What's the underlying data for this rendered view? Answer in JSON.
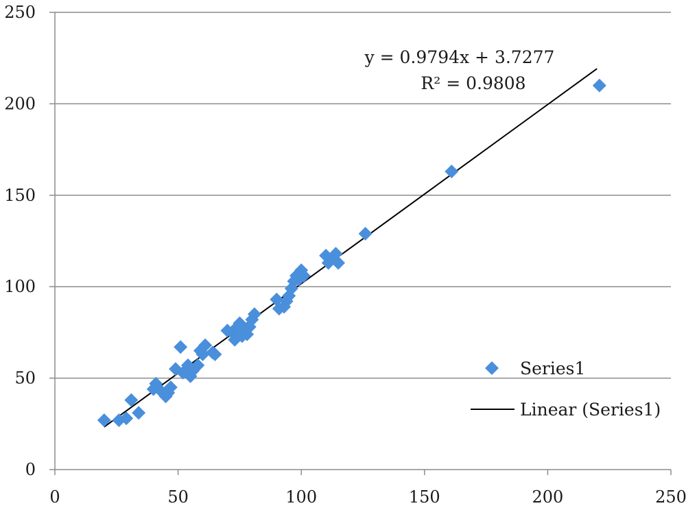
{
  "chart_data": {
    "type": "scatter",
    "title": "",
    "xlabel": "",
    "ylabel": "",
    "xlim": [
      0,
      250
    ],
    "ylim": [
      0,
      250
    ],
    "x_ticks": [
      0,
      50,
      100,
      150,
      200,
      250
    ],
    "y_ticks": [
      0,
      50,
      100,
      150,
      200,
      250
    ],
    "x_tick_labels": [
      "0",
      "50",
      "100",
      "150",
      "200",
      "250"
    ],
    "y_tick_labels": [
      "0",
      "50",
      "100",
      "150",
      "200",
      "250"
    ],
    "grid": "horizontal",
    "legend_position": "right",
    "series": [
      {
        "name": "Series1",
        "marker": "diamond",
        "color": "#4a8fdc",
        "points": [
          [
            20,
            27
          ],
          [
            26,
            27
          ],
          [
            29,
            28
          ],
          [
            31,
            38
          ],
          [
            34,
            31
          ],
          [
            40,
            44
          ],
          [
            41,
            47
          ],
          [
            43,
            43
          ],
          [
            45,
            40
          ],
          [
            46,
            42
          ],
          [
            47,
            45
          ],
          [
            49,
            55
          ],
          [
            51,
            67
          ],
          [
            52,
            53
          ],
          [
            54,
            57
          ],
          [
            55,
            51
          ],
          [
            56,
            54
          ],
          [
            58,
            57
          ],
          [
            59,
            65
          ],
          [
            60,
            63
          ],
          [
            61,
            68
          ],
          [
            64,
            64
          ],
          [
            65,
            63
          ],
          [
            70,
            76
          ],
          [
            72,
            75
          ],
          [
            73,
            71
          ],
          [
            74,
            78
          ],
          [
            75,
            80
          ],
          [
            76,
            73
          ],
          [
            77,
            76
          ],
          [
            78,
            74
          ],
          [
            79,
            78
          ],
          [
            80,
            82
          ],
          [
            81,
            85
          ],
          [
            90,
            93
          ],
          [
            91,
            88
          ],
          [
            93,
            89
          ],
          [
            94,
            92
          ],
          [
            95,
            95
          ],
          [
            96,
            99
          ],
          [
            97,
            103
          ],
          [
            98,
            106
          ],
          [
            99,
            104
          ],
          [
            100,
            109
          ],
          [
            101,
            106
          ],
          [
            110,
            117
          ],
          [
            111,
            113
          ],
          [
            112,
            115
          ],
          [
            114,
            118
          ],
          [
            115,
            113
          ],
          [
            126,
            129
          ],
          [
            161,
            163
          ],
          [
            221,
            210
          ]
        ]
      }
    ],
    "trendline": {
      "name": "Linear (Series1)",
      "slope": 0.9794,
      "intercept": 3.7277,
      "x_range": [
        20,
        220
      ],
      "color": "#000000",
      "equation_label": "y = 0.9794x + 3.7277",
      "r2_label": "R² = 0.9808"
    }
  }
}
